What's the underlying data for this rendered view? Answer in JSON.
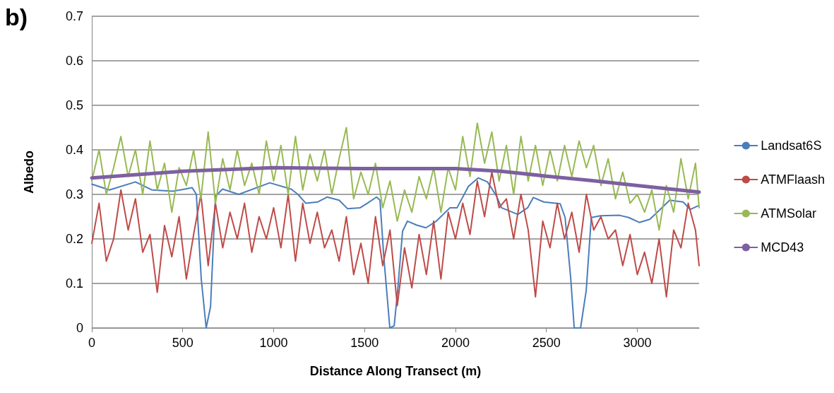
{
  "chart_data": {
    "type": "line",
    "title": "b)",
    "xlabel": "Distance Along Transect (m)",
    "ylabel": "Albedo",
    "xlim": [
      0,
      3340
    ],
    "xticks": [
      0,
      500,
      1000,
      1500,
      2000,
      2500,
      3000
    ],
    "ylim": [
      0,
      0.7
    ],
    "yticks": [
      0,
      0.1,
      0.2,
      0.3,
      0.4,
      0.5,
      0.6,
      0.7
    ],
    "grid": "y",
    "legend": "right",
    "marker": "none",
    "line_style": "solid",
    "series": [
      {
        "name": "Landsat6S",
        "color": "#4a7ebb",
        "x": [
          0,
          97,
          240,
          330,
          447,
          552,
          575,
          602,
          629,
          653,
          680,
          719,
          808,
          979,
          1096,
          1134,
          1177,
          1243,
          1294,
          1360,
          1406,
          1476,
          1515,
          1566,
          1585,
          1605,
          1639,
          1663,
          1682,
          1709,
          1736,
          1787,
          1838,
          1892,
          1970,
          2009,
          2071,
          2125,
          2176,
          2226,
          2253,
          2343,
          2397,
          2428,
          2486,
          2576,
          2603,
          2634,
          2653,
          2688,
          2719,
          2747,
          2797,
          2902,
          2953,
          3011,
          3069,
          3120,
          3178,
          3252,
          3291,
          3333
        ],
        "values": [
          0.323,
          0.31,
          0.328,
          0.31,
          0.307,
          0.315,
          0.3,
          0.11,
          0,
          0.048,
          0.296,
          0.312,
          0.3,
          0.326,
          0.312,
          0.3,
          0.28,
          0.283,
          0.294,
          0.287,
          0.268,
          0.27,
          0.28,
          0.294,
          0.287,
          0.164,
          0,
          0.005,
          0.084,
          0.217,
          0.24,
          0.231,
          0.225,
          0.239,
          0.27,
          0.27,
          0.318,
          0.337,
          0.328,
          0.296,
          0.27,
          0.255,
          0.27,
          0.293,
          0.283,
          0.279,
          0.248,
          0.111,
          0,
          0,
          0.084,
          0.248,
          0.252,
          0.253,
          0.248,
          0.237,
          0.244,
          0.264,
          0.287,
          0.283,
          0.266,
          0.274
        ]
      },
      {
        "name": "ATMFlaash",
        "color": "#be4b48",
        "x": [
          0,
          40,
          80,
          120,
          160,
          200,
          240,
          280,
          320,
          360,
          400,
          440,
          480,
          520,
          560,
          600,
          640,
          680,
          720,
          760,
          800,
          840,
          880,
          920,
          960,
          1000,
          1040,
          1080,
          1120,
          1160,
          1200,
          1240,
          1280,
          1320,
          1360,
          1400,
          1440,
          1480,
          1520,
          1560,
          1600,
          1640,
          1680,
          1720,
          1760,
          1800,
          1840,
          1880,
          1920,
          1960,
          2000,
          2040,
          2080,
          2120,
          2160,
          2200,
          2240,
          2280,
          2320,
          2360,
          2400,
          2440,
          2480,
          2520,
          2560,
          2600,
          2640,
          2680,
          2720,
          2760,
          2800,
          2840,
          2880,
          2920,
          2960,
          3000,
          3040,
          3080,
          3120,
          3160,
          3200,
          3240,
          3280,
          3320,
          3340
        ],
        "values": [
          0.19,
          0.28,
          0.15,
          0.2,
          0.31,
          0.22,
          0.29,
          0.17,
          0.21,
          0.08,
          0.23,
          0.16,
          0.25,
          0.11,
          0.21,
          0.3,
          0.14,
          0.28,
          0.18,
          0.26,
          0.2,
          0.28,
          0.17,
          0.25,
          0.2,
          0.27,
          0.18,
          0.3,
          0.15,
          0.28,
          0.19,
          0.26,
          0.18,
          0.22,
          0.15,
          0.25,
          0.12,
          0.19,
          0.1,
          0.25,
          0.14,
          0.22,
          0.05,
          0.18,
          0.09,
          0.21,
          0.12,
          0.24,
          0.11,
          0.26,
          0.2,
          0.28,
          0.21,
          0.33,
          0.25,
          0.35,
          0.27,
          0.29,
          0.2,
          0.3,
          0.22,
          0.07,
          0.24,
          0.18,
          0.28,
          0.2,
          0.26,
          0.17,
          0.3,
          0.22,
          0.25,
          0.2,
          0.22,
          0.14,
          0.21,
          0.12,
          0.17,
          0.1,
          0.2,
          0.07,
          0.22,
          0.18,
          0.28,
          0.22,
          0.14
        ]
      },
      {
        "name": "ATMSolar",
        "color": "#98b954",
        "x": [
          0,
          40,
          80,
          120,
          160,
          200,
          240,
          280,
          320,
          360,
          400,
          440,
          480,
          520,
          560,
          600,
          640,
          680,
          720,
          760,
          800,
          840,
          880,
          920,
          960,
          1000,
          1040,
          1080,
          1120,
          1160,
          1200,
          1240,
          1280,
          1320,
          1360,
          1400,
          1440,
          1480,
          1520,
          1560,
          1600,
          1640,
          1680,
          1720,
          1760,
          1800,
          1840,
          1880,
          1920,
          1960,
          2000,
          2040,
          2080,
          2120,
          2160,
          2200,
          2240,
          2280,
          2320,
          2360,
          2400,
          2440,
          2480,
          2520,
          2560,
          2600,
          2640,
          2680,
          2720,
          2760,
          2800,
          2840,
          2880,
          2920,
          2960,
          3000,
          3040,
          3080,
          3120,
          3160,
          3200,
          3240,
          3280,
          3320,
          3340
        ],
        "values": [
          0.33,
          0.4,
          0.3,
          0.36,
          0.43,
          0.34,
          0.4,
          0.3,
          0.42,
          0.31,
          0.37,
          0.26,
          0.36,
          0.32,
          0.4,
          0.29,
          0.44,
          0.28,
          0.38,
          0.31,
          0.4,
          0.32,
          0.37,
          0.3,
          0.42,
          0.33,
          0.41,
          0.3,
          0.43,
          0.31,
          0.39,
          0.33,
          0.4,
          0.3,
          0.38,
          0.45,
          0.29,
          0.35,
          0.3,
          0.37,
          0.27,
          0.33,
          0.24,
          0.31,
          0.26,
          0.34,
          0.29,
          0.36,
          0.26,
          0.36,
          0.31,
          0.43,
          0.34,
          0.46,
          0.37,
          0.44,
          0.33,
          0.41,
          0.3,
          0.43,
          0.33,
          0.41,
          0.32,
          0.4,
          0.33,
          0.41,
          0.34,
          0.42,
          0.36,
          0.41,
          0.32,
          0.38,
          0.29,
          0.35,
          0.28,
          0.3,
          0.26,
          0.31,
          0.22,
          0.32,
          0.26,
          0.38,
          0.29,
          0.37,
          0.27
        ]
      },
      {
        "name": "MCD43",
        "color": "#7d60a0",
        "x": [
          0,
          500,
          1000,
          1500,
          2000,
          2250,
          2500,
          2750,
          3000,
          3340
        ],
        "values": [
          0.337,
          0.352,
          0.36,
          0.358,
          0.358,
          0.352,
          0.341,
          0.331,
          0.32,
          0.305
        ]
      }
    ]
  }
}
